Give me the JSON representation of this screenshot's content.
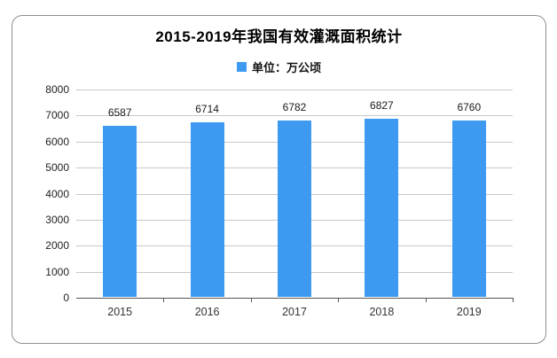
{
  "chart_data": {
    "type": "bar",
    "title": "2015-2019年我国有效灌溉面积统计",
    "legend_label": "单位：万公顷",
    "categories": [
      "2015",
      "2016",
      "2017",
      "2018",
      "2019"
    ],
    "values": [
      6587,
      6714,
      6782,
      6827,
      6760
    ],
    "ylim": [
      0,
      8000
    ],
    "ytick_step": 1000,
    "ytick_labels": [
      "0",
      "1000",
      "2000",
      "3000",
      "4000",
      "5000",
      "6000",
      "7000",
      "8000"
    ],
    "bar_color": "#3E9AF1",
    "gridline_color": "#c8c8c8",
    "axis_color": "#555555",
    "grid": true,
    "legend_position": "top-center",
    "xlabel": "",
    "ylabel": ""
  }
}
